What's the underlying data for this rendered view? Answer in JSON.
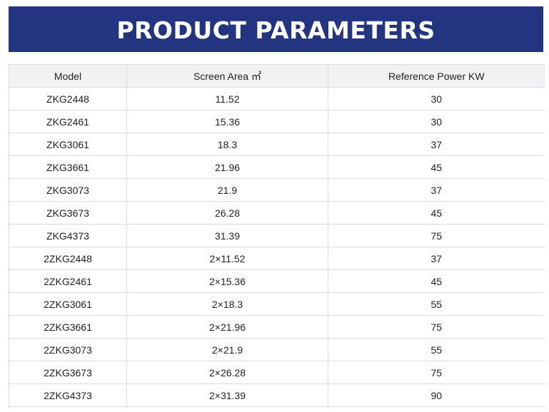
{
  "banner": {
    "title": "PRODUCT PARAMETERS"
  },
  "table": {
    "headers": [
      "Model",
      "Screen Area ㎡",
      "Reference Power KW"
    ],
    "rows": [
      [
        "ZKG2448",
        "11.52",
        "30"
      ],
      [
        "ZKG2461",
        "15.36",
        "30"
      ],
      [
        "ZKG3061",
        "18.3",
        "37"
      ],
      [
        "ZKG3661",
        "21.96",
        "45"
      ],
      [
        "ZKG3073",
        "21.9",
        "37"
      ],
      [
        "ZKG3673",
        "26.28",
        "45"
      ],
      [
        "ZKG4373",
        "31.39",
        "75"
      ],
      [
        "2ZKG2448",
        "2×11.52",
        "37"
      ],
      [
        "2ZKG2461",
        "2×15.36",
        "45"
      ],
      [
        "2ZKG3061",
        "2×18.3",
        "55"
      ],
      [
        "2ZKG3661",
        "2×21.96",
        "75"
      ],
      [
        "2ZKG3073",
        "2×21.9",
        "55"
      ],
      [
        "2ZKG3673",
        "2×26.28",
        "75"
      ],
      [
        "2ZKG4373",
        "2×31.39",
        "90"
      ]
    ]
  },
  "colors": {
    "banner_background": "#233580",
    "banner_text": "#ffffff",
    "header_background": "#f1f2f4",
    "grid_line": "#dcdcdc"
  }
}
